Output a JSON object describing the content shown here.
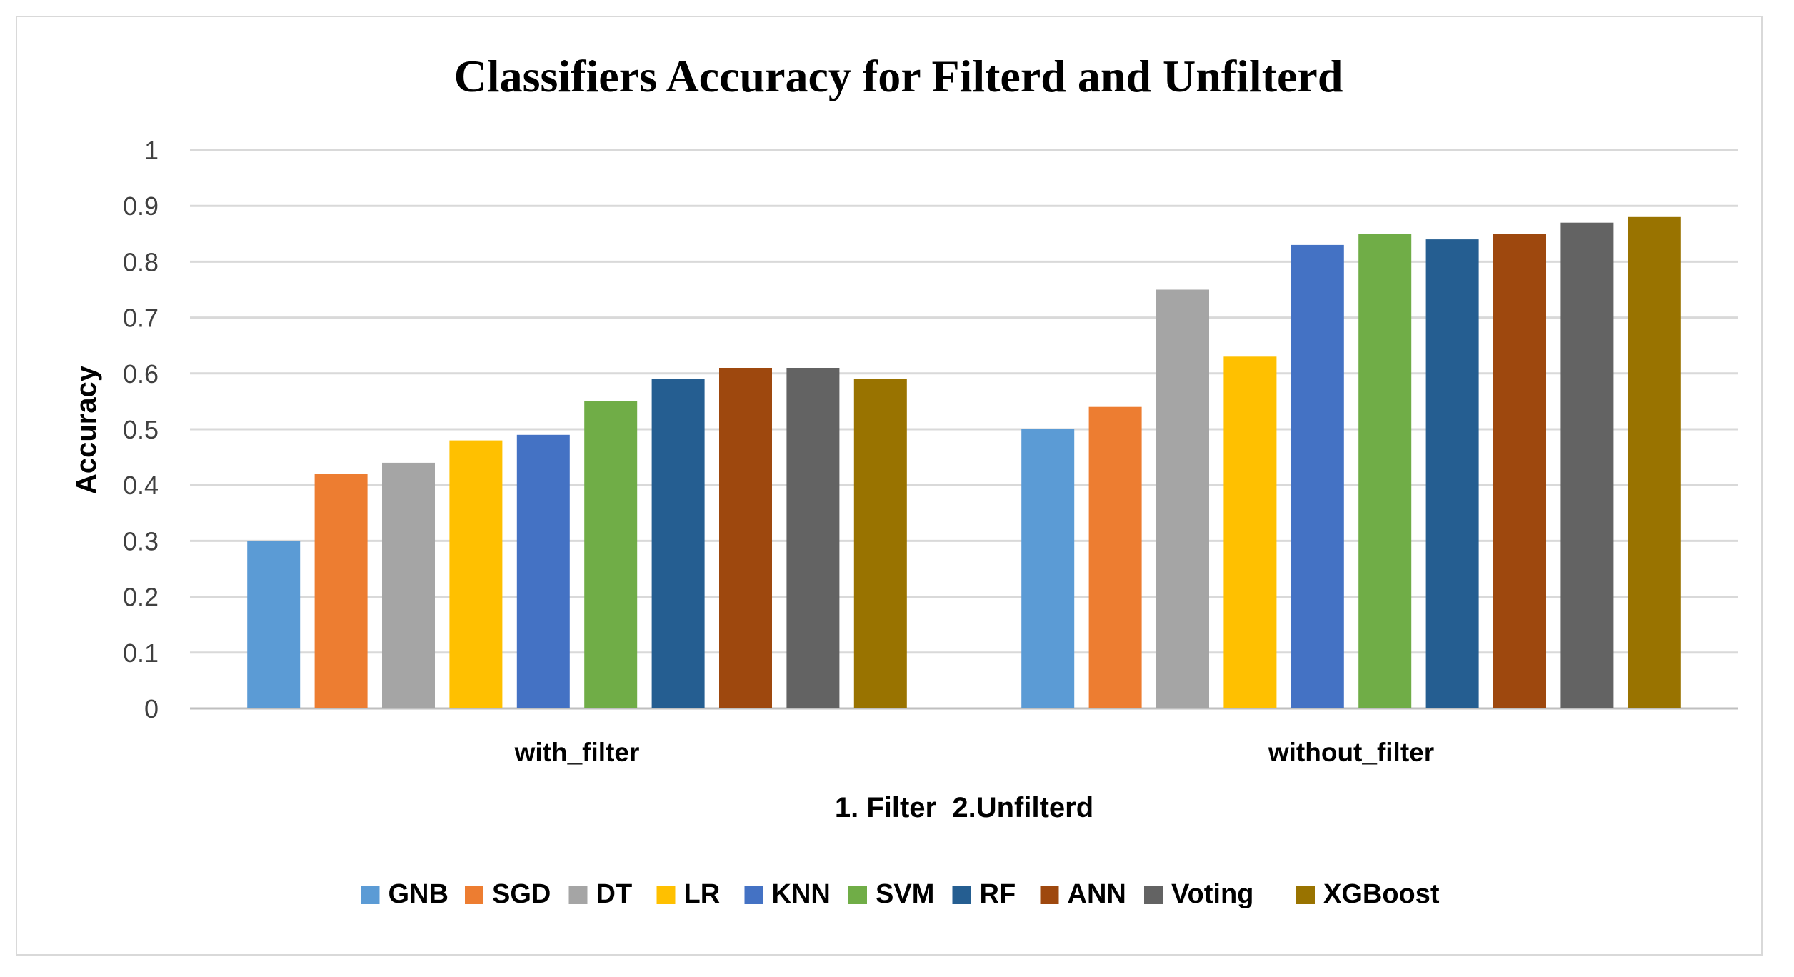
{
  "chart_data": {
    "type": "bar",
    "title": "Classifiers Accuracy for Filterd and Unfilterd",
    "xlabel": "1. Filter  2.Unfilterd",
    "ylabel": "Accuracy",
    "ylim": [
      0,
      1
    ],
    "yticks": [
      0,
      0.1,
      0.2,
      0.3,
      0.4,
      0.5,
      0.6,
      0.7,
      0.8,
      0.9,
      1
    ],
    "ytick_labels": [
      "0",
      "0.1",
      "0.2",
      "0.3",
      "0.4",
      "0.5",
      "0.6",
      "0.7",
      "0.8",
      "0.9",
      "1"
    ],
    "grid": true,
    "legend_position": "bottom",
    "categories": [
      "with_filter",
      "without_filter"
    ],
    "series": [
      {
        "name": "GNB",
        "color": "#5B9BD5",
        "values": [
          0.3,
          0.5
        ]
      },
      {
        "name": "SGD",
        "color": "#ED7D31",
        "values": [
          0.42,
          0.54
        ]
      },
      {
        "name": "DT",
        "color": "#A5A5A5",
        "values": [
          0.44,
          0.75
        ]
      },
      {
        "name": "LR",
        "color": "#FFC000",
        "values": [
          0.48,
          0.63
        ]
      },
      {
        "name": "KNN",
        "color": "#4472C4",
        "values": [
          0.49,
          0.83
        ]
      },
      {
        "name": "SVM",
        "color": "#70AD47",
        "values": [
          0.55,
          0.85
        ]
      },
      {
        "name": "RF",
        "color": "#255E91",
        "values": [
          0.59,
          0.84
        ]
      },
      {
        "name": "ANN",
        "color": "#9E480E",
        "values": [
          0.61,
          0.85
        ]
      },
      {
        "name": "Voting",
        "color": "#636363",
        "values": [
          0.61,
          0.87
        ]
      },
      {
        "name": "XGBoost",
        "color": "#997300",
        "values": [
          0.59,
          0.88
        ]
      }
    ]
  }
}
